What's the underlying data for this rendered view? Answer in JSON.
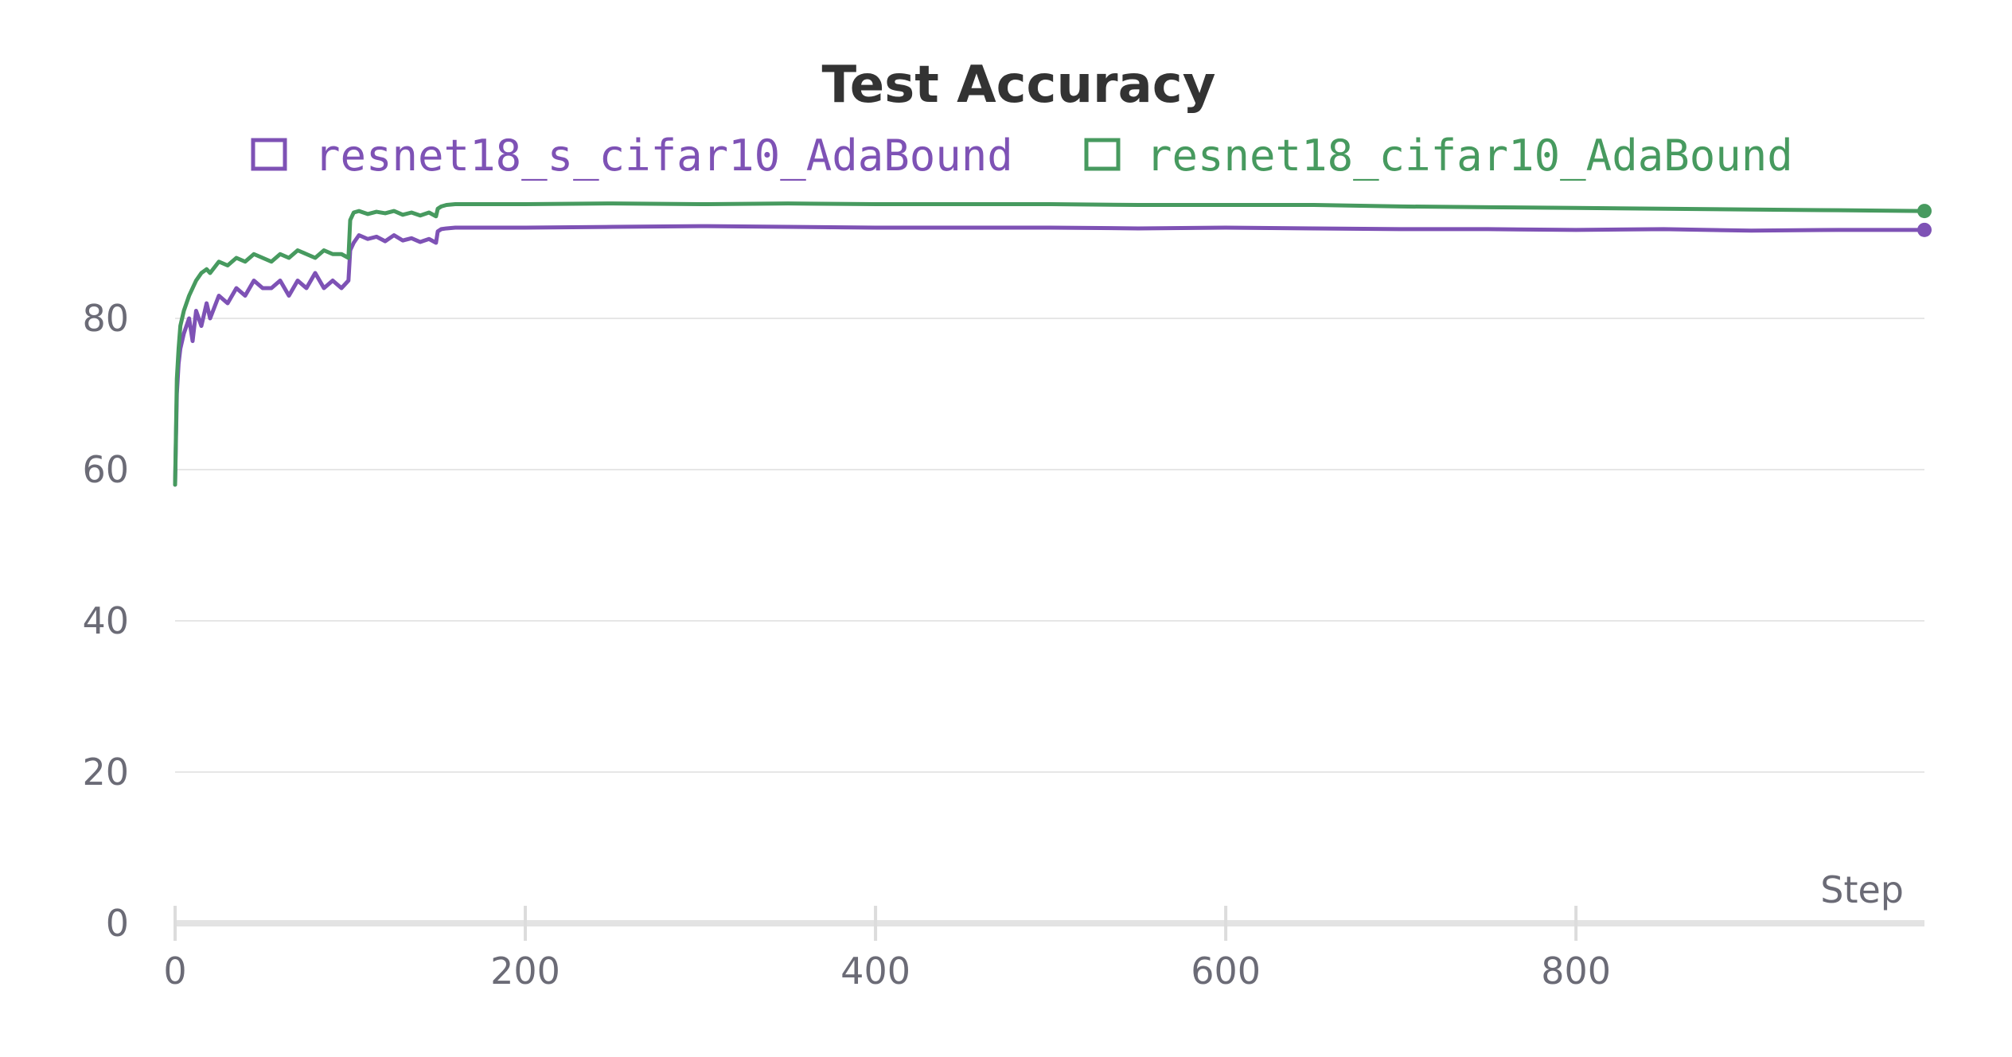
{
  "chart_data": {
    "type": "line",
    "title": "Test Accuracy",
    "xlabel": "Step",
    "ylabel": "",
    "xlim": [
      0,
      999
    ],
    "ylim": [
      0,
      100
    ],
    "x_ticks": [
      0,
      200,
      400,
      600,
      800
    ],
    "y_ticks": [
      0,
      20,
      40,
      60,
      80
    ],
    "grid": true,
    "legend_position": "top",
    "series": [
      {
        "name": "resnet18_s_cifar10_AdaBound",
        "color": "#7e52b5",
        "x": [
          0,
          1,
          2,
          3,
          5,
          8,
          10,
          12,
          15,
          18,
          20,
          25,
          30,
          35,
          40,
          45,
          50,
          55,
          60,
          65,
          70,
          75,
          80,
          85,
          90,
          95,
          99,
          100,
          102,
          105,
          110,
          115,
          120,
          125,
          130,
          135,
          140,
          145,
          149,
          150,
          152,
          155,
          160,
          180,
          200,
          250,
          300,
          350,
          400,
          450,
          500,
          550,
          600,
          650,
          700,
          750,
          800,
          850,
          900,
          950,
          999
        ],
        "y": [
          58,
          70,
          74,
          76,
          78,
          80,
          77,
          81,
          79,
          82,
          80,
          83,
          82,
          84,
          83,
          85,
          84,
          84,
          85,
          83,
          85,
          84,
          86,
          84,
          85,
          84,
          85,
          89,
          90,
          91,
          90.5,
          90.8,
          90.2,
          91,
          90.3,
          90.6,
          90.1,
          90.5,
          90,
          91.5,
          91.8,
          91.9,
          92,
          92,
          92,
          92.1,
          92.2,
          92.1,
          92,
          92,
          92,
          91.9,
          92,
          91.9,
          91.8,
          91.8,
          91.7,
          91.8,
          91.6,
          91.7,
          91.7
        ]
      },
      {
        "name": "resnet18_cifar10_AdaBound",
        "color": "#479a5f",
        "x": [
          0,
          1,
          2,
          3,
          5,
          8,
          10,
          12,
          15,
          18,
          20,
          25,
          30,
          35,
          40,
          45,
          50,
          55,
          60,
          65,
          70,
          75,
          80,
          85,
          90,
          95,
          99,
          100,
          102,
          105,
          110,
          115,
          120,
          125,
          130,
          135,
          140,
          145,
          149,
          150,
          152,
          155,
          160,
          180,
          200,
          250,
          300,
          350,
          400,
          450,
          500,
          550,
          600,
          650,
          700,
          750,
          800,
          850,
          900,
          950,
          999
        ],
        "y": [
          58,
          72,
          76,
          79,
          81,
          83,
          84,
          85,
          86,
          86.5,
          86,
          87.5,
          87,
          88,
          87.5,
          88.5,
          88,
          87.5,
          88.5,
          88,
          89,
          88.5,
          88,
          89,
          88.5,
          88.5,
          88,
          93,
          94,
          94.2,
          93.8,
          94.1,
          93.9,
          94.2,
          93.7,
          94,
          93.6,
          94,
          93.5,
          94.5,
          94.8,
          95,
          95.1,
          95.1,
          95.1,
          95.2,
          95.1,
          95.2,
          95.1,
          95.1,
          95.1,
          95,
          95,
          95,
          94.8,
          94.7,
          94.6,
          94.5,
          94.4,
          94.3,
          94.2
        ]
      }
    ]
  }
}
